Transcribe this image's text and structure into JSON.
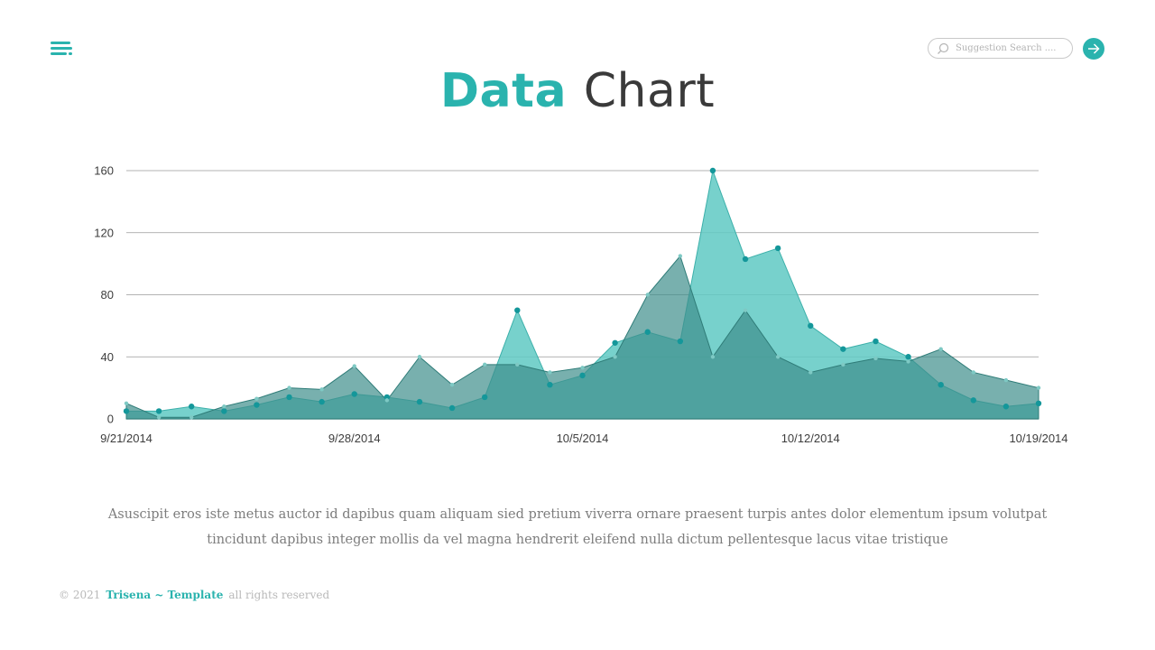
{
  "header": {
    "menu_icon": "hamburger-menu-icon",
    "search": {
      "placeholder": "Suggestion Search ....",
      "icon": "search-icon"
    },
    "go_icon": "arrow-right-icon"
  },
  "title": {
    "accent": "Data",
    "rest": "Chart"
  },
  "colors": {
    "accent": "#2ab3ae",
    "series_light": "#5fc9c3",
    "series_dark": "#3f8f8b",
    "marker": "#14979a",
    "grid": "#9a9a9a"
  },
  "chart_data": {
    "type": "area",
    "title": "",
    "xlabel": "",
    "ylabel": "",
    "ylim": [
      0,
      160
    ],
    "yticks": [
      0,
      40,
      80,
      120,
      160
    ],
    "x": [
      "9/21/2014",
      "9/22/2014",
      "9/23/2014",
      "9/24/2014",
      "9/25/2014",
      "9/26/2014",
      "9/27/2014",
      "9/28/2014",
      "9/29/2014",
      "9/30/2014",
      "10/1/2014",
      "10/2/2014",
      "10/3/2014",
      "10/4/2014",
      "10/5/2014",
      "10/6/2014",
      "10/7/2014",
      "10/8/2014",
      "10/9/2014",
      "10/10/2014",
      "10/11/2014",
      "10/12/2014",
      "10/13/2014",
      "10/14/2014",
      "10/15/2014",
      "10/16/2014",
      "10/17/2014",
      "10/18/2014",
      "10/19/2014"
    ],
    "xticks": [
      "9/21/2014",
      "9/28/2014",
      "10/5/2014",
      "10/12/2014",
      "10/19/2014"
    ],
    "grid": true,
    "series": [
      {
        "values": [
          10,
          1,
          1,
          8,
          13,
          20,
          19,
          34,
          12,
          40,
          22,
          35,
          35,
          30,
          33,
          40,
          80,
          105,
          40,
          70,
          40,
          30,
          35,
          39,
          37,
          45,
          30,
          25,
          20
        ]
      },
      {
        "values": [
          5,
          5,
          8,
          5,
          9,
          14,
          11,
          16,
          14,
          11,
          7,
          14,
          70,
          22,
          28,
          49,
          56,
          50,
          160,
          103,
          110,
          60,
          45,
          50,
          40,
          22,
          12,
          8,
          10
        ]
      }
    ]
  },
  "description": {
    "line1": "Asuscipit eros iste metus auctor id dapibus quam aliquam sied pretium viverra ornare praesent turpis antes dolor elementum ipsum volutpat",
    "line2": "tincidunt dapibus integer mollis da vel magna hendrerit eleifend nulla dictum pellentesque lacus vitae tristique"
  },
  "footer": {
    "copyright": "© 2021",
    "brand": "Trisena ~ Template",
    "rights": "all rights reserved"
  }
}
